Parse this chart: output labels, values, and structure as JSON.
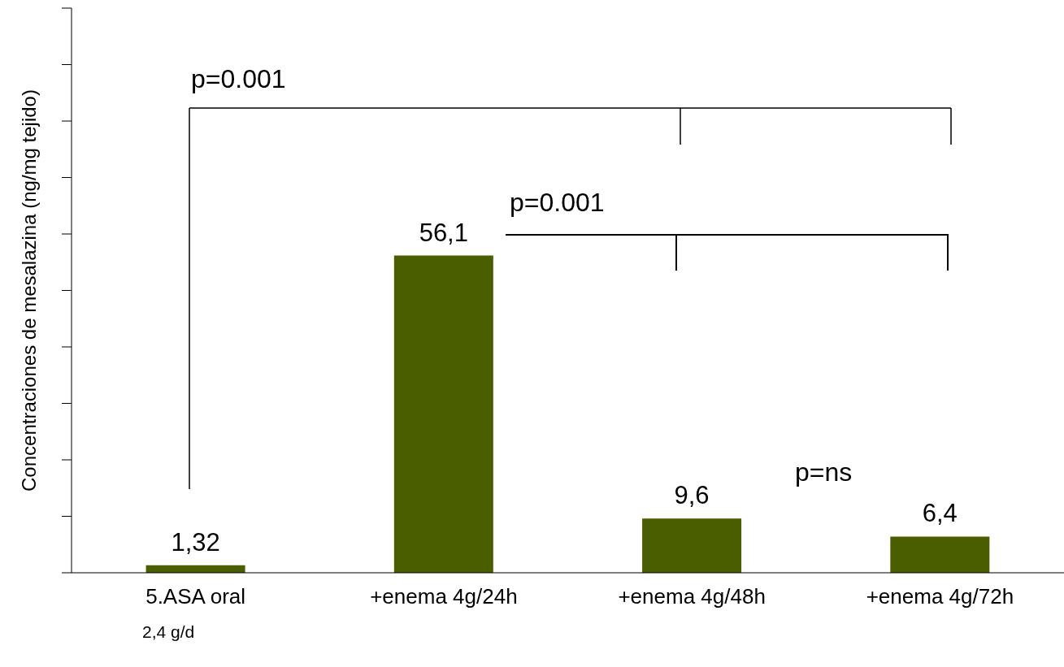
{
  "chart_data": {
    "type": "bar",
    "ylabel": "Concentraciones de mesalazina (ng/mg tejido)",
    "categories": [
      "5.ASA oral",
      "+enema 4g/24h",
      "+enema 4g/48h",
      "+enema 4g/72h"
    ],
    "values": [
      1.32,
      56.1,
      9.6,
      6.4
    ],
    "color": "#4a5e00",
    "tick_labels": "x",
    "data_labels": true,
    "value_labels": [
      "1,32",
      "56,1",
      "9,6",
      "6,4"
    ],
    "annotations": [
      "p=0.001",
      "p=0.001",
      "p=ns",
      "2,4 g/d"
    ]
  }
}
